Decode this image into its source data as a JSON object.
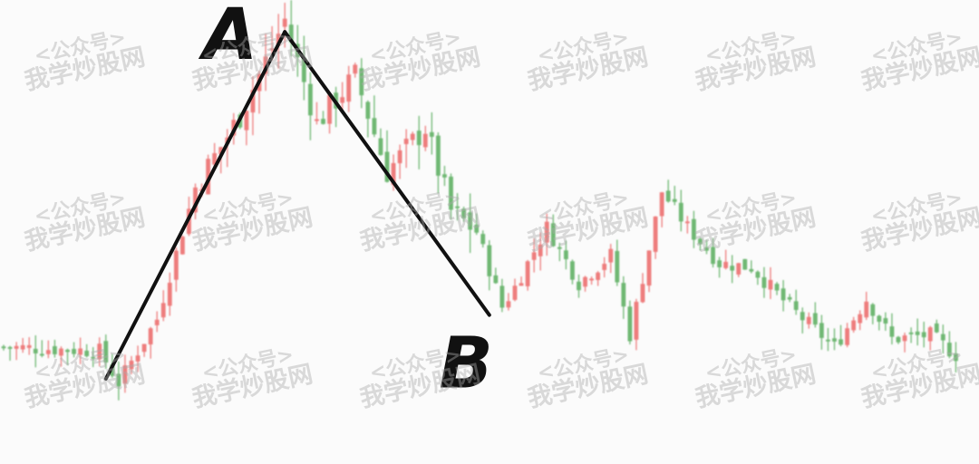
{
  "watermark": {
    "line1": "<公众号>",
    "line2": "我学炒股网"
  },
  "colors": {
    "up": "#ee7d7d",
    "down": "#6fb873",
    "annotation": "#111111"
  },
  "chart_data": {
    "type": "candlestick",
    "title": "",
    "xlabel": "",
    "ylabel": "",
    "grid": false,
    "legend": "none",
    "bar_count": 150,
    "y_range": [
      0,
      100
    ],
    "path_knots": [
      [
        0,
        18
      ],
      [
        15,
        17
      ],
      [
        18,
        9
      ],
      [
        24,
        25
      ],
      [
        30,
        58
      ],
      [
        37,
        76
      ],
      [
        44,
        100
      ],
      [
        49,
        74
      ],
      [
        55,
        86
      ],
      [
        60,
        62
      ],
      [
        66,
        73
      ],
      [
        70,
        52
      ],
      [
        74,
        47
      ],
      [
        78,
        28
      ],
      [
        80,
        33
      ],
      [
        85,
        48
      ],
      [
        90,
        34
      ],
      [
        95,
        41
      ],
      [
        98,
        21
      ],
      [
        103,
        57
      ],
      [
        107,
        48
      ],
      [
        112,
        39
      ],
      [
        117,
        38
      ],
      [
        123,
        28
      ],
      [
        130,
        18
      ],
      [
        135,
        30
      ],
      [
        139,
        20
      ],
      [
        145,
        21
      ],
      [
        149,
        16
      ]
    ],
    "annotations": [
      {
        "label": "A",
        "bar": 44,
        "value": 97
      },
      {
        "label": "B",
        "bar": 76,
        "value": 26
      }
    ],
    "trend_lines": [
      {
        "from": {
          "bar": 16,
          "value": 10
        },
        "to": {
          "bar": 44,
          "value": 97
        }
      },
      {
        "from": {
          "bar": 44,
          "value": 97
        },
        "to": {
          "bar": 76,
          "value": 26
        }
      }
    ]
  }
}
